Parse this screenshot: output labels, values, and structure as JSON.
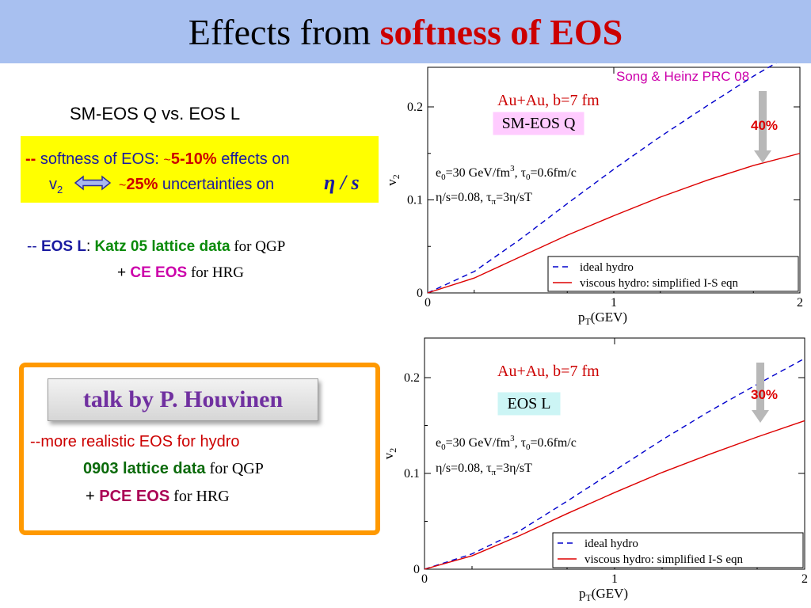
{
  "title": {
    "prefix": "Effects from ",
    "highlight": "softness of EOS"
  },
  "left": {
    "subtitle": "SM-EOS Q vs. EOS L",
    "box": {
      "dash": "--",
      "l1_a": " softness of EOS:  ",
      "tilde1": "~",
      "l1_pct": "5-10%",
      "l1_b": " effects on",
      "v": "v",
      "vsub": "2",
      "tilde2": "~",
      "l2_pct": "25%",
      "l2_b": " uncertainties on ",
      "etas": "η / s"
    },
    "eosl": {
      "dash": "--",
      "name": "EOS L",
      "colon": ":  ",
      "katz": "Katz 05 lattice data",
      "qgp": " for QGP",
      "plus": "+ ",
      "ce": "CE EOS",
      "hrg": " for HRG"
    }
  },
  "talk": {
    "label": "talk by P. Houvinen",
    "l1": "--more realistic EOS for hydro",
    "l2_a": "0903 lattice data",
    "l2_b": " for QGP",
    "l3_plus": "+ ",
    "l3_a": "PCE EOS",
    "l3_b": " for HRG"
  },
  "reference": "Song & Heinz PRC 08",
  "chart_data": [
    {
      "type": "line",
      "x": [
        0,
        0.25,
        0.5,
        0.75,
        1.0,
        1.25,
        1.5,
        1.75,
        2.0
      ],
      "series": [
        {
          "name": "ideal hydro",
          "color": "#0000cc",
          "style": "dashed",
          "values": [
            0,
            0.023,
            0.058,
            0.096,
            0.133,
            0.168,
            0.201,
            0.233,
            0.262
          ]
        },
        {
          "name": "viscous hydro: simplified I-S eqn",
          "color": "#dd0000",
          "style": "solid",
          "values": [
            0,
            0.016,
            0.039,
            0.062,
            0.083,
            0.103,
            0.121,
            0.137,
            0.15
          ]
        }
      ],
      "xlabel": "pT(GEV)",
      "xlabel_main": "p",
      "xlabel_sub": "T",
      "xlabel_rest": "(GEV)",
      "ylabel": "v2",
      "ylabel_main": "v",
      "ylabel_sub": "2",
      "xlim": [
        0,
        2
      ],
      "ylim": [
        0,
        0.2
      ],
      "xticks": [
        "0",
        "1",
        "2"
      ],
      "yticks": [
        "0",
        "0.1",
        "0.2"
      ],
      "legend_position": "bottom-right",
      "annotations": {
        "system": "Au+Au, b=7 fm",
        "eos": "SM-EOS Q",
        "eos_bg": "#ffccff",
        "p1_a": "e",
        "p1_s0": "0",
        "p1_b": "=30 GeV/fm",
        "p1_s3": "3",
        "p1_c": ",   τ",
        "p1_s1": "0",
        "p1_d": "=0.6fm/c",
        "p2_a": "η/s=0.08,   τ",
        "p2_s": "π",
        "p2_b": "=3η/sT",
        "percent": "40%"
      }
    },
    {
      "type": "line",
      "x": [
        0,
        0.25,
        0.5,
        0.75,
        1.0,
        1.25,
        1.5,
        1.75,
        2.0
      ],
      "series": [
        {
          "name": "ideal hydro",
          "color": "#0000cc",
          "style": "dashed",
          "values": [
            0,
            0.016,
            0.04,
            0.071,
            0.103,
            0.135,
            0.165,
            0.193,
            0.22
          ]
        },
        {
          "name": "viscous hydro: simplified I-S eqn",
          "color": "#dd0000",
          "style": "solid",
          "values": [
            0,
            0.014,
            0.035,
            0.058,
            0.08,
            0.101,
            0.12,
            0.138,
            0.155
          ]
        }
      ],
      "xlabel": "pT(GEV)",
      "xlabel_main": "p",
      "xlabel_sub": "T",
      "xlabel_rest": "(GEV)",
      "ylabel": "v2",
      "ylabel_main": "v",
      "ylabel_sub": "2",
      "xlim": [
        0,
        2
      ],
      "ylim": [
        0,
        0.2
      ],
      "xticks": [
        "0",
        "1",
        "2"
      ],
      "yticks": [
        "0",
        "0.1",
        "0.2"
      ],
      "legend_position": "bottom-right",
      "annotations": {
        "system": "Au+Au, b=7 fm",
        "eos": "EOS L",
        "eos_bg": "#ccf5f5",
        "p1_a": "e",
        "p1_s0": "0",
        "p1_b": "=30 GeV/fm",
        "p1_s3": "3",
        "p1_c": ",   τ",
        "p1_s1": "0",
        "p1_d": "=0.6fm/c",
        "p2_a": "η/s=0.08,   τ",
        "p2_s": "π",
        "p2_b": "=3η/sT",
        "percent": "30%"
      }
    }
  ]
}
